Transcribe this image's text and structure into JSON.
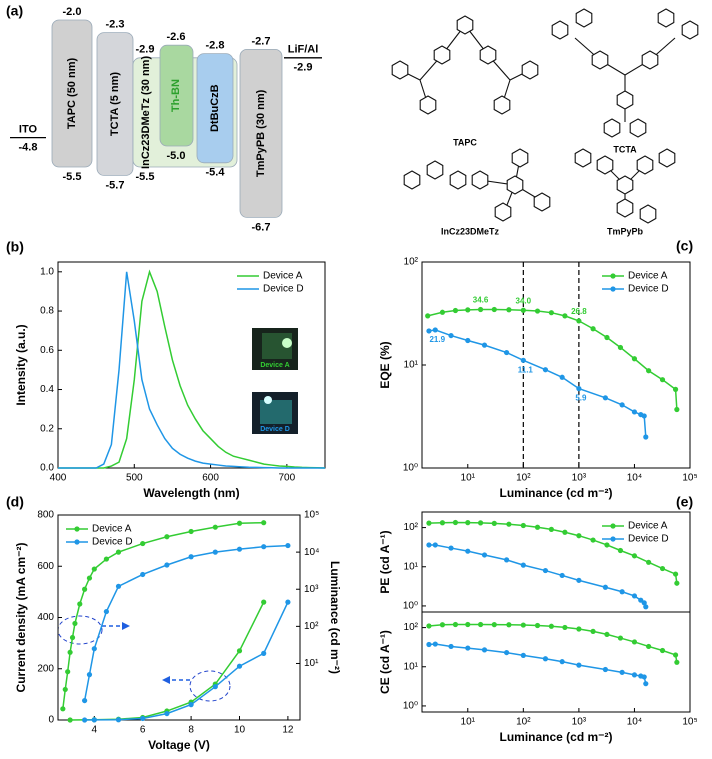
{
  "panel_a": {
    "label": "(a)",
    "energy_diagram": {
      "layers": [
        {
          "name": "TAPC (50 nm)",
          "lumo": {
            "value": -2.0,
            "label": "-2.0"
          },
          "homo": {
            "value": -5.5,
            "label": "-5.5"
          },
          "color": "#d0d0d0",
          "text_color": "#000000"
        },
        {
          "name": "TCTA (5 nm)",
          "lumo": {
            "value": -2.3,
            "label": "-2.3"
          },
          "homo": {
            "value": -5.7,
            "label": "-5.7"
          },
          "color": "#d4d6da",
          "text_color": "#000000"
        },
        {
          "name": "InCz23DMeTz (30 nm)",
          "lumo": {
            "value": -2.9,
            "label": "-2.9"
          },
          "homo": {
            "value": -5.5,
            "label": "-5.5"
          },
          "color": "#e2f0da",
          "text_color": "#000000"
        },
        {
          "name": "Th-BN",
          "lumo": {
            "value": -2.6,
            "label": "-2.6"
          },
          "homo": {
            "value": -5.0,
            "label": "-5.0"
          },
          "color": "#a9d8a0",
          "text_color": "#2ca02c"
        },
        {
          "name": "DtBuCzB",
          "lumo": {
            "value": -2.8,
            "label": "-2.8"
          },
          "homo": {
            "value": -5.4,
            "label": "-5.4"
          },
          "color": "#a8cdee",
          "text_color": "#000000"
        },
        {
          "name": "TmPyPB (30 nm)",
          "lumo": {
            "value": -2.7,
            "label": "-2.7"
          },
          "homo": {
            "value": -6.7,
            "label": "-6.7"
          },
          "color": "#d0d0d0",
          "text_color": "#000000"
        }
      ],
      "electrodes": [
        {
          "name": "ITO",
          "level": {
            "value": -4.8,
            "label": "-4.8"
          }
        },
        {
          "name": "LiF/Al",
          "level": {
            "value": -2.9,
            "label": "-2.9"
          }
        }
      ]
    },
    "molecules": [
      "TAPC",
      "TCTA",
      "InCz23DMeTz",
      "TmPyPb"
    ]
  },
  "chart_data": [
    {
      "type": "line",
      "panel_label": "(b)",
      "xlabel": "Wavelength (nm)",
      "ylabel": "Intensity (a.u.)",
      "xlim": [
        400,
        750
      ],
      "xticks": [
        400,
        500,
        600,
        700
      ],
      "ylim": [
        0,
        1.05
      ],
      "yticks": [
        {
          "value": 0,
          "label": "0.0"
        },
        0.2,
        0.4,
        0.6,
        0.8,
        {
          "value": 1,
          "label": "1.0"
        }
      ],
      "x": [
        400,
        410,
        420,
        430,
        440,
        450,
        460,
        470,
        480,
        490,
        500,
        510,
        520,
        530,
        540,
        550,
        560,
        570,
        580,
        590,
        600,
        610,
        620,
        630,
        640,
        650,
        660,
        670,
        680,
        690,
        700,
        710,
        720,
        730,
        740,
        750
      ],
      "series": [
        {
          "name": "Device A",
          "color": "#33cc33",
          "values": [
            0,
            0,
            0,
            0,
            0,
            0,
            0,
            0.01,
            0.03,
            0.15,
            0.45,
            0.85,
            1.0,
            0.9,
            0.72,
            0.55,
            0.42,
            0.32,
            0.25,
            0.19,
            0.15,
            0.11,
            0.08,
            0.06,
            0.05,
            0.04,
            0.03,
            0.02,
            0.015,
            0.01,
            0.008,
            0.005,
            0.003,
            0.002,
            0.001,
            0
          ]
        },
        {
          "name": "Device D",
          "color": "#1f96e6",
          "values": [
            0,
            0,
            0,
            0,
            0,
            0,
            0.02,
            0.12,
            0.5,
            1.0,
            0.75,
            0.45,
            0.3,
            0.22,
            0.15,
            0.1,
            0.07,
            0.05,
            0.035,
            0.025,
            0.02,
            0.015,
            0.01,
            0.008,
            0.006,
            0.004,
            0.003,
            0.002,
            0.001,
            0,
            0,
            0,
            0,
            0,
            0,
            0
          ]
        }
      ],
      "annotations": [
        "Device A",
        "Device D"
      ],
      "legend": "upper right"
    },
    {
      "type": "line",
      "panel_label": "(c)",
      "xlabel": "Luminance (cd m⁻²)",
      "ylabel": "EQE (%)",
      "xscale": "log",
      "yscale": "log",
      "markers": true,
      "xlim": [
        1.5,
        100000
      ],
      "xticks": [
        {
          "value": 10,
          "label": "10¹"
        },
        {
          "value": 100,
          "label": "10²"
        },
        {
          "value": 1000,
          "label": "10³"
        },
        {
          "value": 10000,
          "label": "10⁴"
        },
        {
          "value": 100000,
          "label": "10⁵"
        }
      ],
      "ylim": [
        1,
        100
      ],
      "yticks": [
        {
          "value": 1,
          "label": "10⁰"
        },
        {
          "value": 10,
          "label": "10¹"
        },
        {
          "value": 100,
          "label": "10²"
        }
      ],
      "vlines": [
        100,
        1000
      ],
      "series": [
        {
          "name": "Device A",
          "color": "#33cc33",
          "x": [
            1.9,
            3.5,
            6,
            10,
            17,
            30,
            55,
            100,
            180,
            320,
            560,
            1000,
            1800,
            3200,
            5600,
            10000,
            18000,
            32000,
            55000,
            58000
          ],
          "values": [
            30,
            32.5,
            33.8,
            34.3,
            34.6,
            34.6,
            34.4,
            34.0,
            33.4,
            32.2,
            30.0,
            26.8,
            22.5,
            18.5,
            14.8,
            11.5,
            8.8,
            7.2,
            5.8,
            3.7
          ],
          "value_labels": [
            null,
            null,
            null,
            null,
            "34.6",
            null,
            null,
            "34.0",
            null,
            null,
            null,
            "26.8",
            null,
            null,
            null,
            null,
            null,
            null,
            null,
            null
          ]
        },
        {
          "name": "Device D",
          "color": "#1f96e6",
          "x": [
            2,
            2.6,
            5,
            10,
            20,
            50,
            100,
            250,
            500,
            1000,
            3000,
            6000,
            10000,
            13000,
            15000,
            16000
          ],
          "values": [
            21.4,
            21.9,
            19.3,
            17.3,
            15.6,
            13.2,
            11.1,
            9.0,
            7.6,
            5.9,
            4.8,
            4.1,
            3.5,
            3.3,
            3.2,
            2.0
          ],
          "value_labels": [
            null,
            "21.9",
            null,
            null,
            null,
            null,
            "11.1",
            null,
            null,
            "5.9",
            null,
            null,
            null,
            null,
            null,
            null
          ]
        }
      ],
      "legend": "upper right"
    },
    {
      "type": "line",
      "panel_label": "(d)",
      "xlabel": "Voltage (V)",
      "ylabel": "Current density (mA cm⁻²)",
      "y2label": "Luminance (cd m⁻²)",
      "markers": true,
      "y2scale": "log",
      "xlim": [
        2.5,
        12.5
      ],
      "xticks": [
        4,
        6,
        8,
        10,
        12
      ],
      "ylim": [
        0,
        800
      ],
      "yticks": [
        0,
        200,
        400,
        600,
        800
      ],
      "y2lim": [
        0.3,
        100000
      ],
      "y2ticks": [
        {
          "value": 10,
          "label": "10¹"
        },
        {
          "value": 100,
          "label": "10²"
        },
        {
          "value": 1000,
          "label": "10³"
        },
        {
          "value": 10000,
          "label": "10⁴"
        },
        {
          "value": 100000,
          "label": "10⁵"
        }
      ],
      "series": [
        {
          "name": "Device A",
          "color": "#33cc33",
          "axis": "y2",
          "x": [
            2.7,
            2.8,
            2.9,
            3.0,
            3.1,
            3.2,
            3.4,
            3.6,
            3.8,
            4,
            4.5,
            5,
            6,
            7,
            8,
            9,
            10,
            11
          ],
          "values": [
            0.6,
            2,
            6,
            20,
            50,
            120,
            400,
            1000,
            2000,
            3500,
            6500,
            10000,
            17000,
            26000,
            36000,
            47000,
            60000,
            62000
          ]
        },
        {
          "name": "Device D",
          "color": "#1f96e6",
          "axis": "y2",
          "x": [
            3.6,
            3.8,
            4,
            4.5,
            5,
            6,
            7,
            8,
            9,
            10,
            11,
            12
          ],
          "values": [
            1,
            5,
            25,
            250,
            1200,
            2500,
            4500,
            7500,
            10000,
            12000,
            14000,
            15000
          ]
        },
        {
          "name": "Device A",
          "color": "#33cc33",
          "x": [
            3,
            4,
            5,
            6,
            7,
            8,
            9,
            10,
            11
          ],
          "values": [
            0,
            1,
            3,
            10,
            35,
            70,
            140,
            270,
            460
          ]
        },
        {
          "name": "Device D",
          "color": "#1f96e6",
          "x": [
            3.6,
            4,
            5,
            6,
            7,
            8,
            9,
            10,
            11,
            12
          ],
          "values": [
            0,
            0.5,
            1,
            6,
            25,
            60,
            130,
            210,
            260,
            460
          ]
        }
      ],
      "legend": "upper left"
    },
    {
      "type": "line",
      "panel_label": "(e)",
      "ylabel": "PE (cd A⁻¹)",
      "xscale": "log",
      "yscale": "log",
      "markers": true,
      "xlim": [
        1.5,
        100000
      ],
      "ylim": [
        0.7,
        250
      ],
      "yticks": [
        {
          "value": 1,
          "label": "10⁰"
        },
        {
          "value": 10,
          "label": "10¹"
        },
        {
          "value": 100,
          "label": "10²"
        }
      ],
      "series": [
        {
          "name": "Device A",
          "color": "#33cc33",
          "x": [
            2,
            3.5,
            6,
            10,
            17,
            30,
            55,
            100,
            180,
            320,
            560,
            1000,
            1800,
            3200,
            5600,
            10000,
            18000,
            32000,
            55000,
            58000
          ],
          "values": [
            130,
            133,
            135,
            134,
            132,
            128,
            122,
            113,
            102,
            90,
            76,
            62,
            48,
            36,
            26,
            19,
            13,
            9,
            6.5,
            3.8
          ]
        },
        {
          "name": "Device D",
          "color": "#1f96e6",
          "x": [
            2,
            2.6,
            5,
            10,
            20,
            50,
            100,
            250,
            500,
            1000,
            3000,
            6000,
            10000,
            13000,
            15000,
            16000
          ],
          "values": [
            36,
            36,
            30,
            25,
            20,
            15,
            11,
            8,
            6,
            4.5,
            3,
            2.3,
            1.8,
            1.4,
            1.2,
            0.95
          ]
        }
      ],
      "legend": "upper right"
    },
    {
      "type": "line",
      "xlabel": "Luminance (cd m⁻²)",
      "ylabel": "CE (cd A⁻¹)",
      "xscale": "log",
      "yscale": "log",
      "markers": true,
      "xlim": [
        1.5,
        100000
      ],
      "xticks": [
        {
          "value": 10,
          "label": "10¹"
        },
        {
          "value": 100,
          "label": "10²"
        },
        {
          "value": 1000,
          "label": "10³"
        },
        {
          "value": 10000,
          "label": "10⁴"
        },
        {
          "value": 100000,
          "label": "10⁵"
        }
      ],
      "ylim": [
        0.7,
        250
      ],
      "yticks": [
        {
          "value": 1,
          "label": "10⁰"
        },
        {
          "value": 10,
          "label": "10¹"
        },
        {
          "value": 100,
          "label": "10²"
        }
      ],
      "series": [
        {
          "name": "Device A",
          "color": "#33cc33",
          "x": [
            2,
            3.5,
            6,
            10,
            17,
            30,
            55,
            100,
            180,
            320,
            560,
            1000,
            1800,
            3200,
            5600,
            10000,
            18000,
            32000,
            55000,
            58000
          ],
          "values": [
            110,
            118,
            120,
            120,
            120,
            119,
            118,
            116,
            113,
            108,
            101,
            92,
            80,
            67,
            54,
            43,
            33,
            26,
            20,
            13
          ]
        },
        {
          "name": "Device D",
          "color": "#1f96e6",
          "x": [
            2,
            2.6,
            5,
            10,
            20,
            50,
            100,
            250,
            500,
            1000,
            3000,
            6000,
            10000,
            13000,
            15000,
            16000
          ],
          "values": [
            37,
            38,
            33,
            30,
            27,
            23,
            19.5,
            16,
            13.5,
            11,
            8.5,
            7.2,
            6.2,
            5.8,
            5.5,
            3.7
          ]
        }
      ]
    }
  ]
}
